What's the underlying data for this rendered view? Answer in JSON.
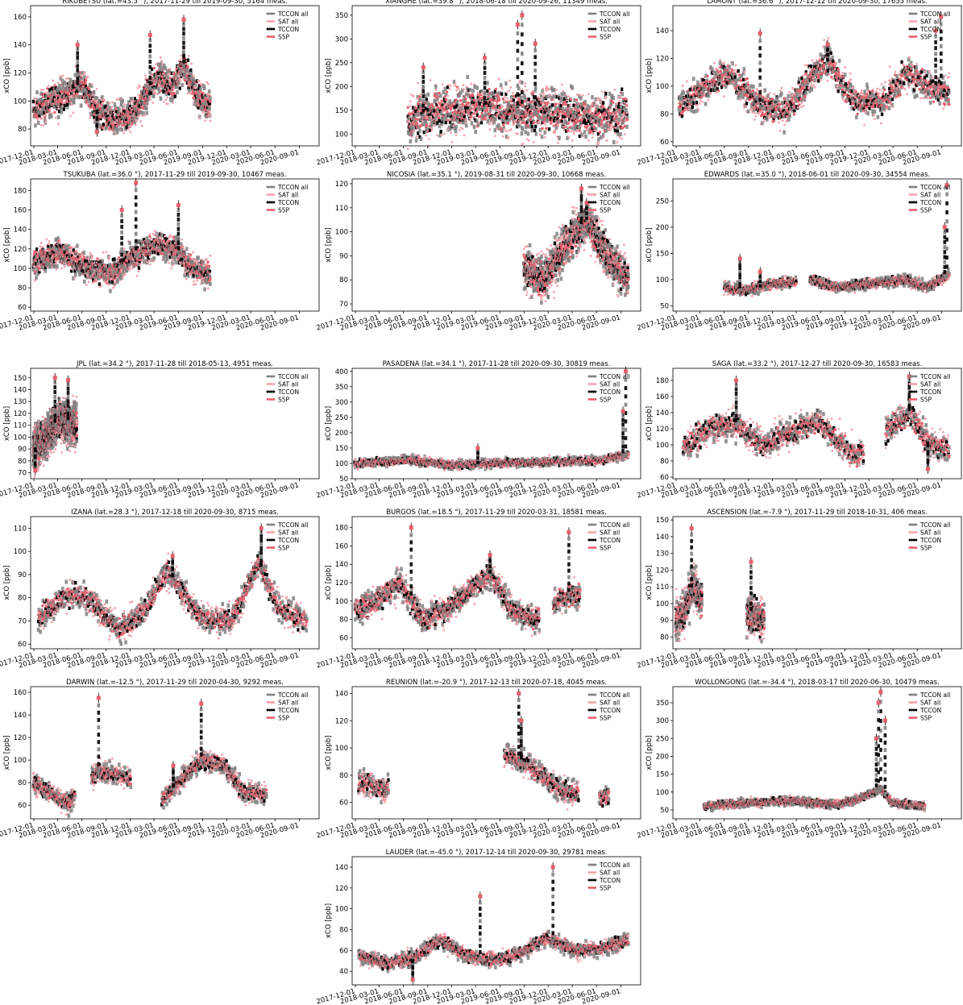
{
  "legend": {
    "entries": [
      {
        "label": "TCCON all",
        "color": "#808080"
      },
      {
        "label": "SAT all",
        "color": "#f4a3ac"
      },
      {
        "label": "TCCON",
        "color": "#000000"
      },
      {
        "label": "S5P",
        "color": "#e8606e"
      }
    ],
    "placement": "top-right"
  },
  "chart_data": [
    {
      "type": "scatter",
      "title": "RIKUBETSU (lat.=43.5 °), 2017-11-29 till 2019-09-30, 5164 meas.",
      "ylabel": "xCO [ppb]",
      "xlim": [
        "2017-12-01",
        "2020-09-01"
      ],
      "ylim": [
        68,
        168
      ],
      "yticks": [
        80,
        100,
        120,
        140,
        160
      ],
      "start": "2017-11-29",
      "end": "2019-09-30",
      "base": [
        [
          0,
          92
        ],
        [
          0.1,
          100
        ],
        [
          0.2,
          106
        ],
        [
          0.28,
          112
        ],
        [
          0.35,
          95
        ],
        [
          0.45,
          85
        ],
        [
          0.55,
          90
        ],
        [
          0.62,
          100
        ],
        [
          0.7,
          118
        ],
        [
          0.78,
          110
        ],
        [
          0.85,
          125
        ],
        [
          0.92,
          105
        ],
        [
          1,
          96
        ]
      ],
      "amp": 8,
      "spikes": [
        [
          0.25,
          140
        ],
        [
          0.66,
          147
        ],
        [
          0.85,
          158
        ],
        [
          0.36,
          78
        ]
      ],
      "gaps": []
    },
    {
      "type": "scatter",
      "title": "XIANGHE (lat.=39.8 °), 2018-06-18 till 2020-09-26, 11349 meas.",
      "ylabel": "xCO [ppb]",
      "xlim": [
        "2017-12-01",
        "2020-09-01"
      ],
      "ylim": [
        75,
        370
      ],
      "yticks": [
        100,
        150,
        200,
        250,
        300,
        350
      ],
      "start": "2018-06-18",
      "end": "2020-09-26",
      "base": [
        [
          0,
          130
        ],
        [
          0.15,
          150
        ],
        [
          0.3,
          160
        ],
        [
          0.45,
          145
        ],
        [
          0.6,
          150
        ],
        [
          0.75,
          140
        ],
        [
          0.9,
          135
        ],
        [
          1,
          145
        ]
      ],
      "amp": 35,
      "spikes": [
        [
          0.07,
          240
        ],
        [
          0.35,
          260
        ],
        [
          0.5,
          330
        ],
        [
          0.58,
          290
        ],
        [
          0.52,
          350
        ]
      ],
      "gaps": []
    },
    {
      "type": "scatter",
      "title": "LAMONT (lat.=36.6 °), 2017-12-12 till 2020-09-30, 17655 meas.",
      "ylabel": "xCO [ppb]",
      "xlim": [
        "2017-12-01",
        "2020-09-01"
      ],
      "ylim": [
        57,
        158
      ],
      "yticks": [
        60,
        80,
        100,
        120,
        140
      ],
      "start": "2017-12-12",
      "end": "2020-09-30",
      "base": [
        [
          0,
          85
        ],
        [
          0.1,
          100
        ],
        [
          0.18,
          110
        ],
        [
          0.3,
          85
        ],
        [
          0.4,
          82
        ],
        [
          0.5,
          110
        ],
        [
          0.55,
          118
        ],
        [
          0.65,
          90
        ],
        [
          0.75,
          88
        ],
        [
          0.85,
          110
        ],
        [
          0.92,
          100
        ],
        [
          1,
          95
        ]
      ],
      "amp": 8,
      "spikes": [
        [
          0.3,
          138
        ],
        [
          0.55,
          130
        ],
        [
          0.95,
          140
        ],
        [
          0.97,
          150
        ]
      ],
      "gaps": []
    },
    {
      "type": "scatter",
      "title": "TSUKUBA (lat.=36.0 °), 2017-11-29 till 2019-09-30, 10467 meas.",
      "ylabel": "xCO [ppb]",
      "xlim": [
        "2017-12-01",
        "2020-09-01"
      ],
      "ylim": [
        56,
        192
      ],
      "yticks": [
        60,
        80,
        100,
        120,
        140,
        160,
        180
      ],
      "start": "2017-11-29",
      "end": "2019-09-30",
      "base": [
        [
          0,
          105
        ],
        [
          0.15,
          118
        ],
        [
          0.3,
          100
        ],
        [
          0.45,
          95
        ],
        [
          0.55,
          110
        ],
        [
          0.7,
          125
        ],
        [
          0.8,
          120
        ],
        [
          0.9,
          100
        ],
        [
          1,
          95
        ]
      ],
      "amp": 10,
      "spikes": [
        [
          0.5,
          160
        ],
        [
          0.58,
          188
        ],
        [
          0.82,
          165
        ]
      ],
      "gaps": []
    },
    {
      "type": "scatter",
      "title": "NICOSIA (lat.=35.1 °), 2019-08-31 till 2020-09-30, 10668 meas.",
      "ylabel": "xCO [ppb]",
      "xlim": [
        "2017-12-01",
        "2020-09-01"
      ],
      "ylim": [
        67,
        122
      ],
      "yticks": [
        70,
        80,
        90,
        100,
        110,
        120
      ],
      "start": "2019-08-31",
      "end": "2020-09-30",
      "base": [
        [
          0,
          85
        ],
        [
          0.2,
          80
        ],
        [
          0.4,
          95
        ],
        [
          0.6,
          105
        ],
        [
          0.8,
          90
        ],
        [
          1,
          80
        ]
      ],
      "amp": 6,
      "spikes": [
        [
          0.55,
          118
        ],
        [
          0.6,
          112
        ]
      ],
      "gaps": []
    },
    {
      "type": "scatter",
      "title": "EDWARDS (lat.=35.0 °), 2018-06-01 till 2020-09-30, 34554 meas.",
      "ylabel": "xCO [ppb]",
      "xlim": [
        "2017-12-01",
        "2020-09-01"
      ],
      "ylim": [
        40,
        292
      ],
      "yticks": [
        50,
        100,
        150,
        200,
        250
      ],
      "start": "2018-06-01",
      "end": "2020-09-30",
      "base": [
        [
          0,
          85
        ],
        [
          0.1,
          80
        ],
        [
          0.2,
          90
        ],
        [
          0.3,
          95
        ],
        [
          0.4,
          100
        ],
        [
          0.5,
          85
        ],
        [
          0.6,
          90
        ],
        [
          0.7,
          95
        ],
        [
          0.8,
          100
        ],
        [
          0.9,
          85
        ],
        [
          1,
          110
        ]
      ],
      "amp": 7,
      "spikes": [
        [
          0.07,
          140
        ],
        [
          0.16,
          115
        ],
        [
          0.99,
          280
        ],
        [
          0.98,
          200
        ]
      ],
      "gaps": [
        [
          0.32,
          0.38
        ]
      ]
    },
    {
      "type": "scatter",
      "title": "JPL (lat.=34.2 °), 2017-11-28 till 2018-05-13, 4951 meas.",
      "ylabel": "xCO [ppb]",
      "xlim": [
        "2017-12-01",
        "2020-09-01"
      ],
      "ylim": [
        65,
        158
      ],
      "yticks": [
        70,
        80,
        90,
        100,
        110,
        120,
        130,
        140,
        150
      ],
      "start": "2017-11-28",
      "end": "2018-05-13",
      "base": [
        [
          0,
          90
        ],
        [
          0.3,
          100
        ],
        [
          0.6,
          115
        ],
        [
          1,
          110
        ]
      ],
      "amp": 12,
      "spikes": [
        [
          0.5,
          150
        ],
        [
          0.8,
          148
        ],
        [
          0.05,
          72
        ]
      ],
      "gaps": []
    },
    {
      "type": "scatter",
      "title": "PASADENA (lat.=34.1 °), 2017-11-28 till 2020-09-30, 30819 meas.",
      "ylabel": "xCO [ppb]",
      "xlim": [
        "2017-12-01",
        "2020-09-01"
      ],
      "ylim": [
        50,
        410
      ],
      "yticks": [
        50,
        100,
        150,
        200,
        250,
        300,
        350,
        400
      ],
      "start": "2017-11-28",
      "end": "2020-09-30",
      "base": [
        [
          0,
          100
        ],
        [
          0.2,
          110
        ],
        [
          0.35,
          95
        ],
        [
          0.5,
          100
        ],
        [
          0.7,
          105
        ],
        [
          0.9,
          110
        ],
        [
          1,
          130
        ]
      ],
      "amp": 10,
      "spikes": [
        [
          0.99,
          400
        ],
        [
          0.98,
          270
        ],
        [
          0.45,
          150
        ]
      ],
      "gaps": []
    },
    {
      "type": "scatter",
      "title": "SAGA (lat.=33.2 °), 2017-12-27 till 2020-09-30, 16583 meas.",
      "ylabel": "xCO [ppb]",
      "xlim": [
        "2017-12-01",
        "2020-09-01"
      ],
      "ylim": [
        58,
        195
      ],
      "yticks": [
        60,
        80,
        100,
        120,
        140,
        160,
        180
      ],
      "start": "2017-12-27",
      "end": "2020-09-30",
      "base": [
        [
          0,
          95
        ],
        [
          0.1,
          120
        ],
        [
          0.2,
          125
        ],
        [
          0.3,
          100
        ],
        [
          0.4,
          115
        ],
        [
          0.5,
          130
        ],
        [
          0.6,
          100
        ],
        [
          0.65,
          85
        ],
        [
          0.75,
          115
        ],
        [
          0.85,
          140
        ],
        [
          0.93,
          100
        ],
        [
          1,
          95
        ]
      ],
      "amp": 12,
      "spikes": [
        [
          0.2,
          180
        ],
        [
          0.85,
          185
        ],
        [
          0.92,
          70
        ]
      ],
      "gaps": [
        [
          0.68,
          0.76
        ]
      ]
    },
    {
      "type": "scatter",
      "title": "IZANA (lat.=28.3 °), 2017-12-18 till 2020-09-30, 8715 meas.",
      "ylabel": "xCO [ppb]",
      "xlim": [
        "2017-12-01",
        "2020-09-01"
      ],
      "ylim": [
        58,
        115
      ],
      "yticks": [
        60,
        70,
        80,
        90,
        100,
        110
      ],
      "start": "2017-12-18",
      "end": "2020-09-30",
      "base": [
        [
          0,
          72
        ],
        [
          0.12,
          82
        ],
        [
          0.2,
          78
        ],
        [
          0.3,
          66
        ],
        [
          0.4,
          75
        ],
        [
          0.48,
          92
        ],
        [
          0.6,
          72
        ],
        [
          0.72,
          70
        ],
        [
          0.82,
          95
        ],
        [
          0.9,
          75
        ],
        [
          1,
          70
        ]
      ],
      "amp": 4,
      "spikes": [
        [
          0.83,
          110
        ],
        [
          0.5,
          98
        ]
      ],
      "gaps": []
    },
    {
      "type": "scatter",
      "title": "BURGOS (lat.=18.5 °), 2017-11-29 till 2020-03-31, 18581 meas.",
      "ylabel": "xCO [ppb]",
      "xlim": [
        "2017-12-01",
        "2020-09-01"
      ],
      "ylim": [
        48,
        192
      ],
      "yticks": [
        60,
        80,
        100,
        120,
        140,
        160,
        180
      ],
      "start": "2017-11-29",
      "end": "2020-03-31",
      "base": [
        [
          0,
          90
        ],
        [
          0.1,
          100
        ],
        [
          0.2,
          120
        ],
        [
          0.3,
          80
        ],
        [
          0.4,
          90
        ],
        [
          0.5,
          110
        ],
        [
          0.6,
          130
        ],
        [
          0.7,
          90
        ],
        [
          0.8,
          80
        ],
        [
          0.9,
          100
        ],
        [
          1,
          110
        ]
      ],
      "amp": 10,
      "spikes": [
        [
          0.25,
          180
        ],
        [
          0.95,
          175
        ],
        [
          0.6,
          150
        ]
      ],
      "gaps": [
        [
          0.82,
          0.88
        ]
      ]
    },
    {
      "type": "scatter",
      "title": "ASCENSION (lat.=-7.9 °), 2017-11-29 till 2018-10-31, 406 meas.",
      "ylabel": "xCO [ppb]",
      "xlim": [
        "2017-12-01",
        "2020-09-01"
      ],
      "ylim": [
        73,
        152
      ],
      "yticks": [
        80,
        90,
        100,
        110,
        120,
        130,
        140,
        150
      ],
      "start": "2017-11-29",
      "end": "2018-10-31",
      "base": [
        [
          0,
          90
        ],
        [
          0.1,
          95
        ],
        [
          0.2,
          110
        ],
        [
          0.3,
          100
        ],
        [
          0.8,
          95
        ],
        [
          1,
          90
        ]
      ],
      "amp": 8,
      "spikes": [
        [
          0.18,
          145
        ],
        [
          0.85,
          125
        ]
      ],
      "gaps": [
        [
          0.3,
          0.8
        ]
      ]
    },
    {
      "type": "scatter",
      "title": "DARWIN (lat.=-12.5 °), 2017-11-29 till 2020-04-30, 9292 meas.",
      "ylabel": "xCO [ppb]",
      "xlim": [
        "2017-12-01",
        "2020-09-01"
      ],
      "ylim": [
        48,
        165
      ],
      "yticks": [
        60,
        80,
        100,
        120,
        140,
        160
      ],
      "start": "2017-11-29",
      "end": "2020-04-30",
      "base": [
        [
          0,
          80
        ],
        [
          0.08,
          70
        ],
        [
          0.15,
          62
        ],
        [
          0.28,
          90
        ],
        [
          0.4,
          85
        ],
        [
          0.55,
          65
        ],
        [
          0.72,
          100
        ],
        [
          0.82,
          95
        ],
        [
          0.9,
          72
        ],
        [
          1,
          70
        ]
      ],
      "amp": 6,
      "spikes": [
        [
          0.28,
          155
        ],
        [
          0.72,
          150
        ],
        [
          0.6,
          95
        ]
      ],
      "gaps": [
        [
          0.18,
          0.25
        ],
        [
          0.42,
          0.55
        ]
      ]
    },
    {
      "type": "scatter",
      "title": "REUNION (lat.=-20.9 °), 2017-12-13 till 2020-07-18, 4045 meas.",
      "ylabel": "xCO [ppb]",
      "xlim": [
        "2017-12-01",
        "2020-09-01"
      ],
      "ylim": [
        48,
        145
      ],
      "yticks": [
        60,
        80,
        100,
        120,
        140
      ],
      "start": "2017-12-13",
      "end": "2020-07-18",
      "base": [
        [
          0,
          75
        ],
        [
          0.1,
          70
        ],
        [
          0.6,
          95
        ],
        [
          0.7,
          85
        ],
        [
          0.8,
          70
        ],
        [
          0.9,
          65
        ],
        [
          1,
          65
        ]
      ],
      "amp": 6,
      "spikes": [
        [
          0.64,
          140
        ],
        [
          0.65,
          120
        ]
      ],
      "gaps": [
        [
          0.12,
          0.58
        ],
        [
          0.88,
          0.96
        ]
      ]
    },
    {
      "type": "scatter",
      "title": "WOLLONGONG (lat.=-34.4 °), 2018-03-17 till 2020-06-30, 10479 meas.",
      "ylabel": "xCO [ppb]",
      "xlim": [
        "2017-12-01",
        "2020-09-01"
      ],
      "ylim": [
        25,
        395
      ],
      "yticks": [
        50,
        100,
        150,
        200,
        250,
        300,
        350
      ],
      "start": "2018-03-17",
      "end": "2020-06-30",
      "base": [
        [
          0,
          60
        ],
        [
          0.2,
          70
        ],
        [
          0.4,
          75
        ],
        [
          0.6,
          65
        ],
        [
          0.7,
          80
        ],
        [
          0.8,
          110
        ],
        [
          0.85,
          70
        ],
        [
          1,
          60
        ]
      ],
      "amp": 8,
      "spikes": [
        [
          0.8,
          380
        ],
        [
          0.79,
          350
        ],
        [
          0.82,
          300
        ],
        [
          0.78,
          250
        ]
      ],
      "gaps": []
    },
    {
      "type": "scatter",
      "title": "LAUDER (lat.=-45.0 °), 2017-12-14 till 2020-09-30, 29781 meas.",
      "ylabel": "xCO [ppb]",
      "xlim": [
        "2017-12-01",
        "2020-09-01"
      ],
      "ylim": [
        27,
        150
      ],
      "yticks": [
        40,
        60,
        80,
        100,
        120,
        140
      ],
      "start": "2017-12-14",
      "end": "2020-09-30",
      "base": [
        [
          0,
          55
        ],
        [
          0.1,
          48
        ],
        [
          0.2,
          52
        ],
        [
          0.3,
          70
        ],
        [
          0.4,
          55
        ],
        [
          0.5,
          50
        ],
        [
          0.6,
          58
        ],
        [
          0.7,
          72
        ],
        [
          0.8,
          60
        ],
        [
          0.9,
          62
        ],
        [
          1,
          70
        ]
      ],
      "amp": 5,
      "spikes": [
        [
          0.72,
          140
        ],
        [
          0.45,
          112
        ],
        [
          0.2,
          32
        ]
      ],
      "gaps": []
    }
  ]
}
